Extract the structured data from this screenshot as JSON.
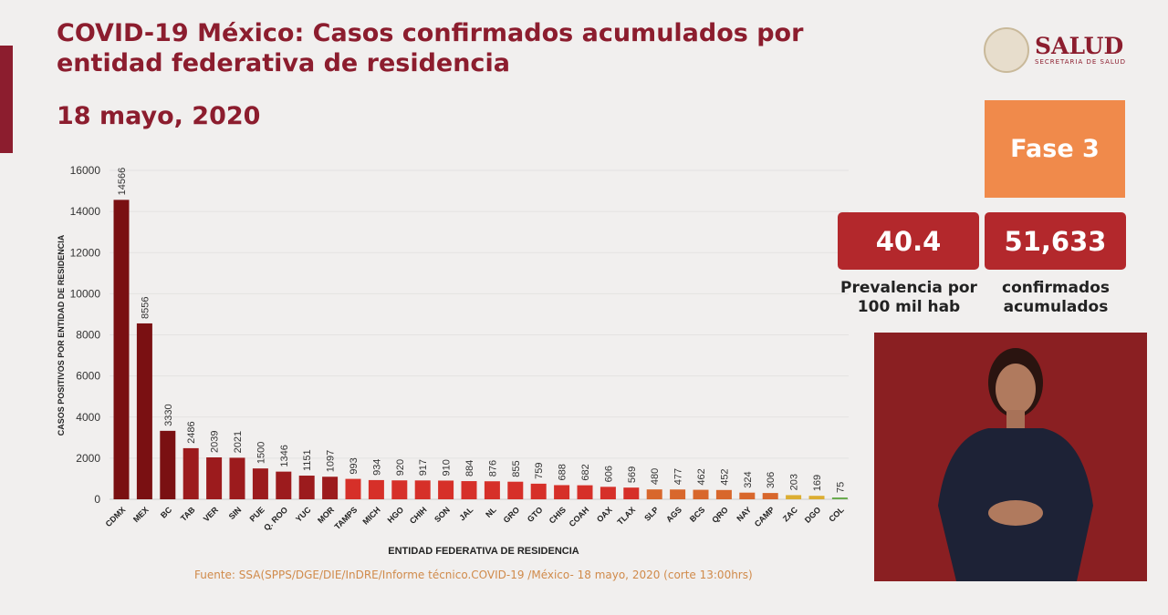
{
  "header": {
    "title": "COVID-19 México: Casos confirmados acumulados por entidad federativa de residencia",
    "date": "18 mayo, 2020"
  },
  "logo": {
    "name": "SALUD",
    "subtitle": "SECRETARIA DE SALUD"
  },
  "phase": {
    "label": "Fase 3",
    "color": "#f08a4b"
  },
  "stats": {
    "prevalence": "40.4",
    "prevalence_label": "Prevalencia por 100 mil hab",
    "confirmed": "51,633",
    "confirmed_label": "confirmados acumulados"
  },
  "source": "Fuente: SSA(SPPS/DGE/DIE/InDRE/Informe técnico.COVID-19 /México- 18 mayo, 2020 (corte 13:00hrs)",
  "chart_data": {
    "type": "bar",
    "title": "",
    "xlabel": "ENTIDAD FEDERATIVA DE RESIDENCIA",
    "ylabel": "CASOS POSITIVOS POR ENTIDAD DE RESIDENCIA",
    "ylim": [
      0,
      16000
    ],
    "yticks": [
      0,
      2000,
      4000,
      6000,
      8000,
      10000,
      12000,
      14000,
      16000
    ],
    "grid": true,
    "categories": [
      "CDMX",
      "MEX",
      "BC",
      "TAB",
      "VER",
      "SIN",
      "PUE",
      "Q. ROO",
      "YUC",
      "MOR",
      "TAMPS",
      "MICH",
      "HGO",
      "CHIH",
      "SON",
      "JAL",
      "NL",
      "GRO",
      "GTO",
      "CHIS",
      "COAH",
      "OAX",
      "TLAX",
      "SLP",
      "AGS",
      "BCS",
      "QRO",
      "NAY",
      "CAMP",
      "ZAC",
      "DGO",
      "COL"
    ],
    "values": [
      14566,
      8556,
      3330,
      2486,
      2039,
      2021,
      1500,
      1346,
      1151,
      1097,
      993,
      934,
      920,
      917,
      910,
      884,
      876,
      855,
      759,
      688,
      682,
      606,
      569,
      480,
      477,
      462,
      452,
      324,
      306,
      203,
      169,
      75
    ],
    "colors": {
      "dark": "#7a1012",
      "darkred": "#9c1b1d",
      "red": "#d63029",
      "orange": "#d8672c",
      "yellow": "#dcae32",
      "green": "#6aab4e"
    }
  }
}
